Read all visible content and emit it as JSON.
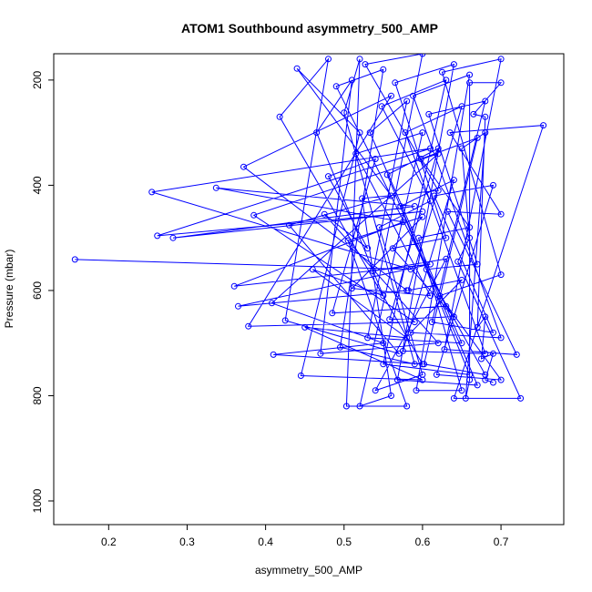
{
  "chart_data": {
    "type": "line",
    "title": "ATOM1 Southbound asymmetry_500_AMP",
    "xlabel": "asymmetry_500_AMP",
    "ylabel": "Pressure (mbar)",
    "xlim": [
      0.13,
      0.78
    ],
    "ylim": [
      1045,
      150
    ],
    "y_reversed": true,
    "xticks": [
      0.2,
      0.3,
      0.4,
      0.5,
      0.6,
      0.7
    ],
    "xtick_labels": [
      "0.2",
      "0.3",
      "0.4",
      "0.5",
      "0.6",
      "0.7"
    ],
    "yticks": [
      200,
      400,
      600,
      800,
      1000
    ],
    "ytick_labels": [
      "200",
      "400",
      "600",
      "800",
      "1000"
    ],
    "grid": false,
    "series": [
      {
        "color": "#0000ff",
        "marker": "open-circle",
        "points": [
          [
            0.157,
            541
          ],
          [
            0.585,
            560
          ],
          [
            0.255,
            413
          ],
          [
            0.61,
            330
          ],
          [
            0.262,
            496
          ],
          [
            0.6,
            450
          ],
          [
            0.282,
            500
          ],
          [
            0.59,
            440
          ],
          [
            0.337,
            405
          ],
          [
            0.575,
            470
          ],
          [
            0.36,
            592
          ],
          [
            0.61,
            550
          ],
          [
            0.365,
            630
          ],
          [
            0.58,
            600
          ],
          [
            0.372,
            365
          ],
          [
            0.56,
            230
          ],
          [
            0.378,
            668
          ],
          [
            0.59,
            660
          ],
          [
            0.385,
            457
          ],
          [
            0.62,
            340
          ],
          [
            0.408,
            624
          ],
          [
            0.55,
            700
          ],
          [
            0.41,
            722
          ],
          [
            0.6,
            740
          ],
          [
            0.418,
            270
          ],
          [
            0.48,
            160
          ],
          [
            0.425,
            657
          ],
          [
            0.57,
            720
          ],
          [
            0.43,
            476
          ],
          [
            0.56,
            420
          ],
          [
            0.44,
            178
          ],
          [
            0.52,
            300
          ],
          [
            0.445,
            762
          ],
          [
            0.6,
            770
          ],
          [
            0.45,
            670
          ],
          [
            0.58,
            690
          ],
          [
            0.46,
            560
          ],
          [
            0.55,
            610
          ],
          [
            0.465,
            300
          ],
          [
            0.51,
            200
          ],
          [
            0.47,
            720
          ],
          [
            0.62,
            700
          ],
          [
            0.475,
            455
          ],
          [
            0.53,
            520
          ],
          [
            0.48,
            383
          ],
          [
            0.54,
            350
          ],
          [
            0.485,
            643
          ],
          [
            0.63,
            630
          ],
          [
            0.49,
            212
          ],
          [
            0.55,
            180
          ],
          [
            0.495,
            708
          ],
          [
            0.59,
            740
          ],
          [
            0.5,
            262
          ],
          [
            0.52,
            160
          ],
          [
            0.503,
            820
          ],
          [
            0.58,
            820
          ],
          [
            0.505,
            505
          ],
          [
            0.6,
            460
          ],
          [
            0.51,
            596
          ],
          [
            0.61,
            610
          ],
          [
            0.515,
            340
          ],
          [
            0.6,
            300
          ],
          [
            0.52,
            820
          ],
          [
            0.56,
            800
          ],
          [
            0.523,
            425
          ],
          [
            0.62,
            410
          ],
          [
            0.527,
            170
          ],
          [
            0.6,
            150
          ],
          [
            0.53,
            690
          ],
          [
            0.65,
            700
          ],
          [
            0.533,
            300
          ],
          [
            0.58,
            240
          ],
          [
            0.537,
            563
          ],
          [
            0.63,
            540
          ],
          [
            0.54,
            790
          ],
          [
            0.6,
            760
          ],
          [
            0.545,
            480
          ],
          [
            0.61,
            430
          ],
          [
            0.548,
            250
          ],
          [
            0.63,
            200
          ],
          [
            0.55,
            740
          ],
          [
            0.66,
            760
          ],
          [
            0.555,
            380
          ],
          [
            0.62,
            330
          ],
          [
            0.558,
            655
          ],
          [
            0.64,
            650
          ],
          [
            0.562,
            520
          ],
          [
            0.63,
            500
          ],
          [
            0.565,
            205
          ],
          [
            0.64,
            170
          ],
          [
            0.568,
            770
          ],
          [
            0.67,
            780
          ],
          [
            0.572,
            440
          ],
          [
            0.64,
            390
          ],
          [
            0.575,
            715
          ],
          [
            0.68,
            720
          ],
          [
            0.578,
            300
          ],
          [
            0.65,
            250
          ],
          [
            0.582,
            600
          ],
          [
            0.65,
            580
          ],
          [
            0.585,
            680
          ],
          [
            0.7,
            690
          ],
          [
            0.588,
            230
          ],
          [
            0.66,
            190
          ],
          [
            0.592,
            790
          ],
          [
            0.65,
            790
          ],
          [
            0.595,
            500
          ],
          [
            0.66,
            480
          ],
          [
            0.598,
            350
          ],
          [
            0.67,
            310
          ],
          [
            0.602,
            740
          ],
          [
            0.68,
            760
          ],
          [
            0.605,
            560
          ],
          [
            0.67,
            550
          ],
          [
            0.608,
            265
          ],
          [
            0.68,
            240
          ],
          [
            0.612,
            660
          ],
          [
            0.69,
            680
          ],
          [
            0.615,
            420
          ],
          [
            0.69,
            400
          ],
          [
            0.618,
            760
          ],
          [
            0.7,
            770
          ],
          [
            0.622,
            610
          ],
          [
            0.7,
            570
          ],
          [
            0.625,
            185
          ],
          [
            0.7,
            160
          ],
          [
            0.628,
            712
          ],
          [
            0.72,
            722
          ],
          [
            0.632,
            450
          ],
          [
            0.7,
            455
          ],
          [
            0.635,
            300
          ],
          [
            0.754,
            286
          ],
          [
            0.64,
            805
          ],
          [
            0.725,
            805
          ],
          [
            0.645,
            545
          ],
          [
            0.66,
            500
          ],
          [
            0.65,
            330
          ],
          [
            0.68,
            300
          ],
          [
            0.655,
            805
          ],
          [
            0.66,
            770
          ],
          [
            0.66,
            205
          ],
          [
            0.7,
            205
          ],
          [
            0.665,
            265
          ],
          [
            0.68,
            270
          ],
          [
            0.67,
            670
          ],
          [
            0.68,
            650
          ],
          [
            0.675,
            730
          ],
          [
            0.69,
            720
          ],
          [
            0.68,
            770
          ],
          [
            0.69,
            775
          ]
        ]
      }
    ]
  }
}
